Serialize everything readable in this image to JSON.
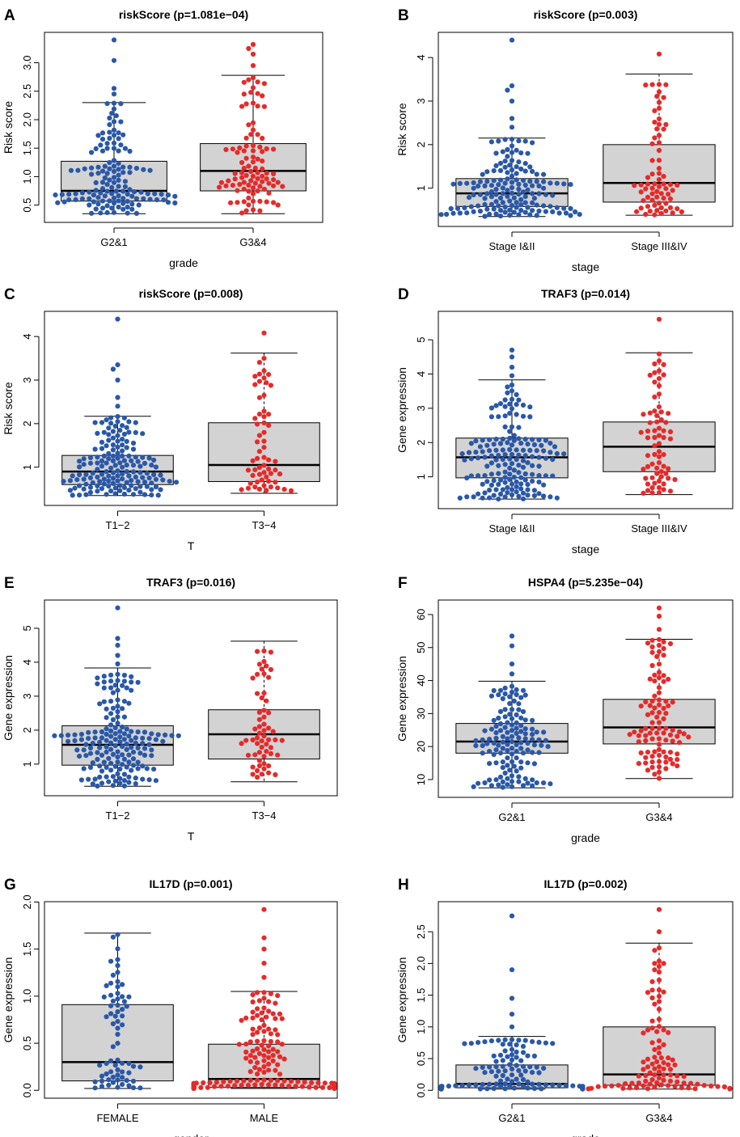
{
  "colors": {
    "group1": "#2a58a8",
    "group2": "#e62a2a",
    "box_fill": "#d3d3d3"
  },
  "chart_data": [
    {
      "panel": "A",
      "type": "box-swarm",
      "title": "riskScore (p=1.081e−04)",
      "xlabel": "grade",
      "ylabel": "Risk score",
      "ylim": [
        0.33,
        3.4
      ],
      "yticks": [
        "0.5",
        "1.0",
        "1.5",
        "2.0",
        "2.5",
        "3.0"
      ],
      "ytick_values": [
        0.5,
        1.0,
        1.5,
        2.0,
        2.5,
        3.0
      ],
      "groups": [
        {
          "label": "G2&1",
          "n": 140,
          "min": 0.35,
          "q1": 0.57,
          "median": 0.75,
          "q3": 1.27,
          "max": 2.3,
          "whisker_dashed": false,
          "outliers": [
            2.45,
            2.55,
            3.04,
            3.4
          ]
        },
        {
          "label": "G3&4",
          "n": 100,
          "min": 0.35,
          "q1": 0.75,
          "median": 1.1,
          "q3": 1.58,
          "max": 2.78,
          "whisker_dashed": false,
          "outliers": [
            2.95,
            3.15,
            3.25,
            3.32
          ]
        }
      ]
    },
    {
      "panel": "B",
      "type": "box-swarm",
      "title": "riskScore (p=0.003)",
      "xlabel": "stage",
      "ylabel": "Risk score",
      "ylim": [
        0.3,
        4.4
      ],
      "yticks": [
        "1",
        "2",
        "3",
        "4"
      ],
      "ytick_values": [
        1,
        2,
        3,
        4
      ],
      "groups": [
        {
          "label": "Stage I&II",
          "n": 160,
          "min": 0.35,
          "q1": 0.58,
          "median": 0.88,
          "q3": 1.22,
          "max": 2.15,
          "whisker_dashed": false,
          "outliers": [
            2.4,
            2.6,
            3.0,
            3.25,
            3.35,
            4.4
          ]
        },
        {
          "label": "Stage III&IV",
          "n": 70,
          "min": 0.38,
          "q1": 0.68,
          "median": 1.12,
          "q3": 2.0,
          "max": 3.62,
          "whisker_dashed": true,
          "outliers": [
            4.08
          ]
        }
      ]
    },
    {
      "panel": "C",
      "type": "box-swarm",
      "title": "riskScore (p=0.008)",
      "xlabel": "T",
      "ylabel": "Risk score",
      "ylim": [
        0.3,
        4.4
      ],
      "yticks": [
        "1",
        "2",
        "3",
        "4"
      ],
      "ytick_values": [
        1,
        2,
        3,
        4
      ],
      "groups": [
        {
          "label": "T1−2",
          "n": 165,
          "min": 0.35,
          "q1": 0.6,
          "median": 0.9,
          "q3": 1.27,
          "max": 2.17,
          "whisker_dashed": false,
          "outliers": [
            2.4,
            2.6,
            3.0,
            3.25,
            3.35,
            4.4
          ]
        },
        {
          "label": "T3−4",
          "n": 60,
          "min": 0.4,
          "q1": 0.67,
          "median": 1.05,
          "q3": 2.02,
          "max": 3.62,
          "whisker_dashed": true,
          "outliers": [
            4.08
          ]
        }
      ]
    },
    {
      "panel": "D",
      "type": "box-swarm",
      "title": "TRAF3 (p=0.014)",
      "xlabel": "stage",
      "ylabel": "Gene expression",
      "ylim": [
        0.3,
        5.6
      ],
      "yticks": [
        "1",
        "2",
        "3",
        "4",
        "5"
      ],
      "ytick_values": [
        1,
        2,
        3,
        4,
        5
      ],
      "groups": [
        {
          "label": "Stage I&II",
          "n": 170,
          "min": 0.35,
          "q1": 0.97,
          "median": 1.57,
          "q3": 2.13,
          "max": 3.83,
          "whisker_dashed": false,
          "outliers": [
            3.95,
            4.2,
            4.5,
            4.7
          ]
        },
        {
          "label": "Stage III&IV",
          "n": 70,
          "min": 0.48,
          "q1": 1.15,
          "median": 1.88,
          "q3": 2.6,
          "max": 4.62,
          "whisker_dashed": true,
          "outliers": [
            5.6
          ]
        }
      ]
    },
    {
      "panel": "E",
      "type": "box-swarm",
      "title": "TRAF3 (p=0.016)",
      "xlabel": "T",
      "ylabel": "Gene expression",
      "ylim": [
        0.3,
        5.6
      ],
      "yticks": [
        "1",
        "2",
        "3",
        "4",
        "5"
      ],
      "ytick_values": [
        1,
        2,
        3,
        4,
        5
      ],
      "groups": [
        {
          "label": "T1−2",
          "n": 175,
          "min": 0.35,
          "q1": 0.97,
          "median": 1.57,
          "q3": 2.13,
          "max": 3.83,
          "whisker_dashed": false,
          "outliers": [
            3.95,
            4.2,
            4.5,
            4.7,
            5.6
          ]
        },
        {
          "label": "T3−4",
          "n": 60,
          "min": 0.48,
          "q1": 1.15,
          "median": 1.88,
          "q3": 2.6,
          "max": 4.62,
          "whisker_dashed": true,
          "outliers": []
        }
      ]
    },
    {
      "panel": "F",
      "type": "box-swarm",
      "title": "HSPA4 (p=5.235e−04)",
      "xlabel": "grade",
      "ylabel": "Gene expression",
      "ylim": [
        7,
        62
      ],
      "yticks": [
        "10",
        "20",
        "30",
        "40",
        "50",
        "60"
      ],
      "ytick_values": [
        10,
        20,
        30,
        40,
        50,
        60
      ],
      "groups": [
        {
          "label": "G2&1",
          "n": 140,
          "min": 7.5,
          "q1": 18.0,
          "median": 21.5,
          "q3": 27.0,
          "max": 39.8,
          "whisker_dashed": false,
          "outliers": [
            42.0,
            45.0,
            50.5,
            53.5
          ]
        },
        {
          "label": "G3&4",
          "n": 100,
          "min": 10.3,
          "q1": 20.8,
          "median": 25.8,
          "q3": 34.3,
          "max": 52.5,
          "whisker_dashed": true,
          "outliers": [
            55.5,
            59.5,
            62.0
          ]
        }
      ]
    },
    {
      "panel": "G",
      "type": "box-swarm",
      "title": "IL17D (p=0.001)",
      "xlabel": "gender",
      "ylabel": "Gene expression",
      "ylim": [
        0,
        1.92
      ],
      "yticks": [
        "0.0",
        "0.5",
        "1.0",
        "1.5",
        "2.0"
      ],
      "ytick_values": [
        0,
        0.5,
        1.0,
        1.5,
        2.0
      ],
      "groups": [
        {
          "label": "FEMALE",
          "n": 70,
          "min": 0.02,
          "q1": 0.1,
          "median": 0.3,
          "q3": 0.91,
          "max": 1.67,
          "whisker_dashed": false,
          "outliers": []
        },
        {
          "label": "MALE",
          "n": 170,
          "min": 0.02,
          "q1": 0.03,
          "median": 0.12,
          "q3": 0.49,
          "max": 1.05,
          "whisker_dashed": true,
          "outliers": [
            1.2,
            1.35,
            1.5,
            1.62,
            1.92
          ]
        }
      ]
    },
    {
      "panel": "H",
      "type": "box-swarm",
      "title": "IL17D (p=0.002)",
      "xlabel": "grade",
      "ylabel": "Gene expression",
      "ylim": [
        0,
        2.85
      ],
      "yticks": [
        "0.0",
        "0.5",
        "1.0",
        "1.5",
        "2.0",
        "2.5"
      ],
      "ytick_values": [
        0,
        0.5,
        1.0,
        1.5,
        2.0,
        2.5
      ],
      "groups": [
        {
          "label": "G2&1",
          "n": 140,
          "min": 0.02,
          "q1": 0.04,
          "median": 0.1,
          "q3": 0.4,
          "max": 0.85,
          "whisker_dashed": false,
          "outliers": [
            1.0,
            1.2,
            1.45,
            1.9,
            2.75
          ]
        },
        {
          "label": "G3&4",
          "n": 100,
          "min": 0.02,
          "q1": 0.08,
          "median": 0.25,
          "q3": 1.0,
          "max": 2.32,
          "whisker_dashed": true,
          "outliers": [
            2.5,
            2.85
          ]
        }
      ]
    }
  ]
}
